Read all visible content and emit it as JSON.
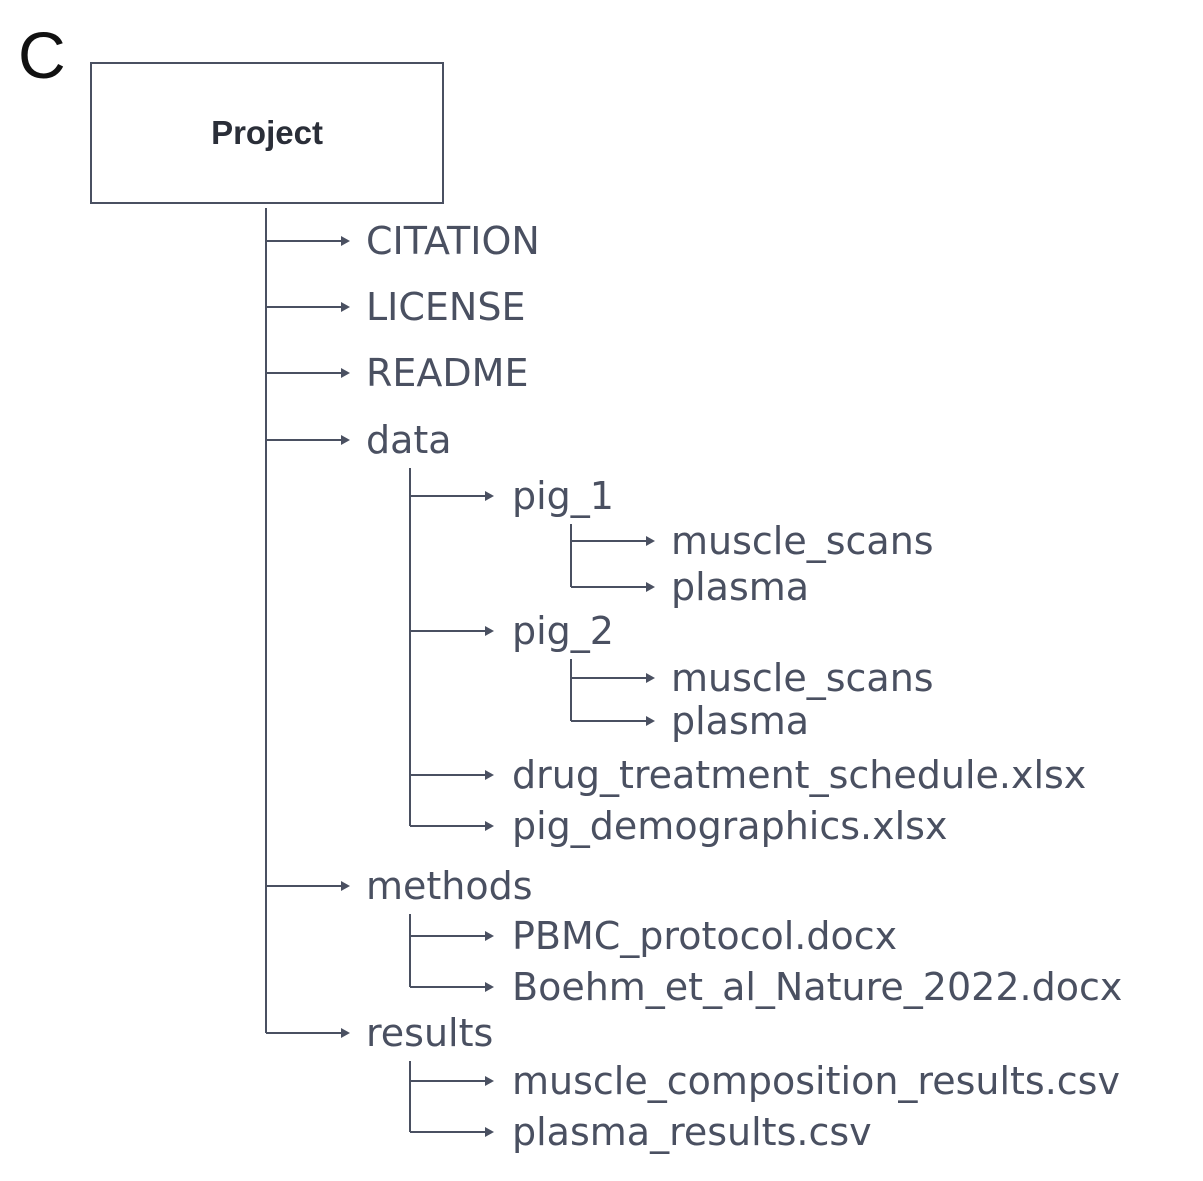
{
  "panel_letter": "C",
  "root": {
    "label": "Project"
  },
  "colors": {
    "line": "#4a5061",
    "text": "#4a5061",
    "root_text": "#2a2e38"
  },
  "items": [
    {
      "label": "CITATION",
      "depth": 1
    },
    {
      "label": "LICENSE",
      "depth": 1
    },
    {
      "label": "README",
      "depth": 1
    },
    {
      "label": "data",
      "depth": 1
    },
    {
      "label": "pig_1",
      "depth": 2
    },
    {
      "label": "muscle_scans",
      "depth": 3
    },
    {
      "label": "plasma",
      "depth": 3
    },
    {
      "label": "pig_2",
      "depth": 2
    },
    {
      "label": "muscle_scans",
      "depth": 3
    },
    {
      "label": "plasma",
      "depth": 3
    },
    {
      "label": "drug_treatment_schedule.xlsx",
      "depth": 2
    },
    {
      "label": "pig_demographics.xlsx",
      "depth": 2
    },
    {
      "label": "methods",
      "depth": 1
    },
    {
      "label": "PBMC_protocol.docx",
      "depth": 2
    },
    {
      "label": "Boehm_et_al_Nature_2022.docx",
      "depth": 2
    },
    {
      "label": "results",
      "depth": 1
    },
    {
      "label": "muscle_composition_results.csv",
      "depth": 2
    },
    {
      "label": "plasma_results.csv",
      "depth": 2
    }
  ]
}
